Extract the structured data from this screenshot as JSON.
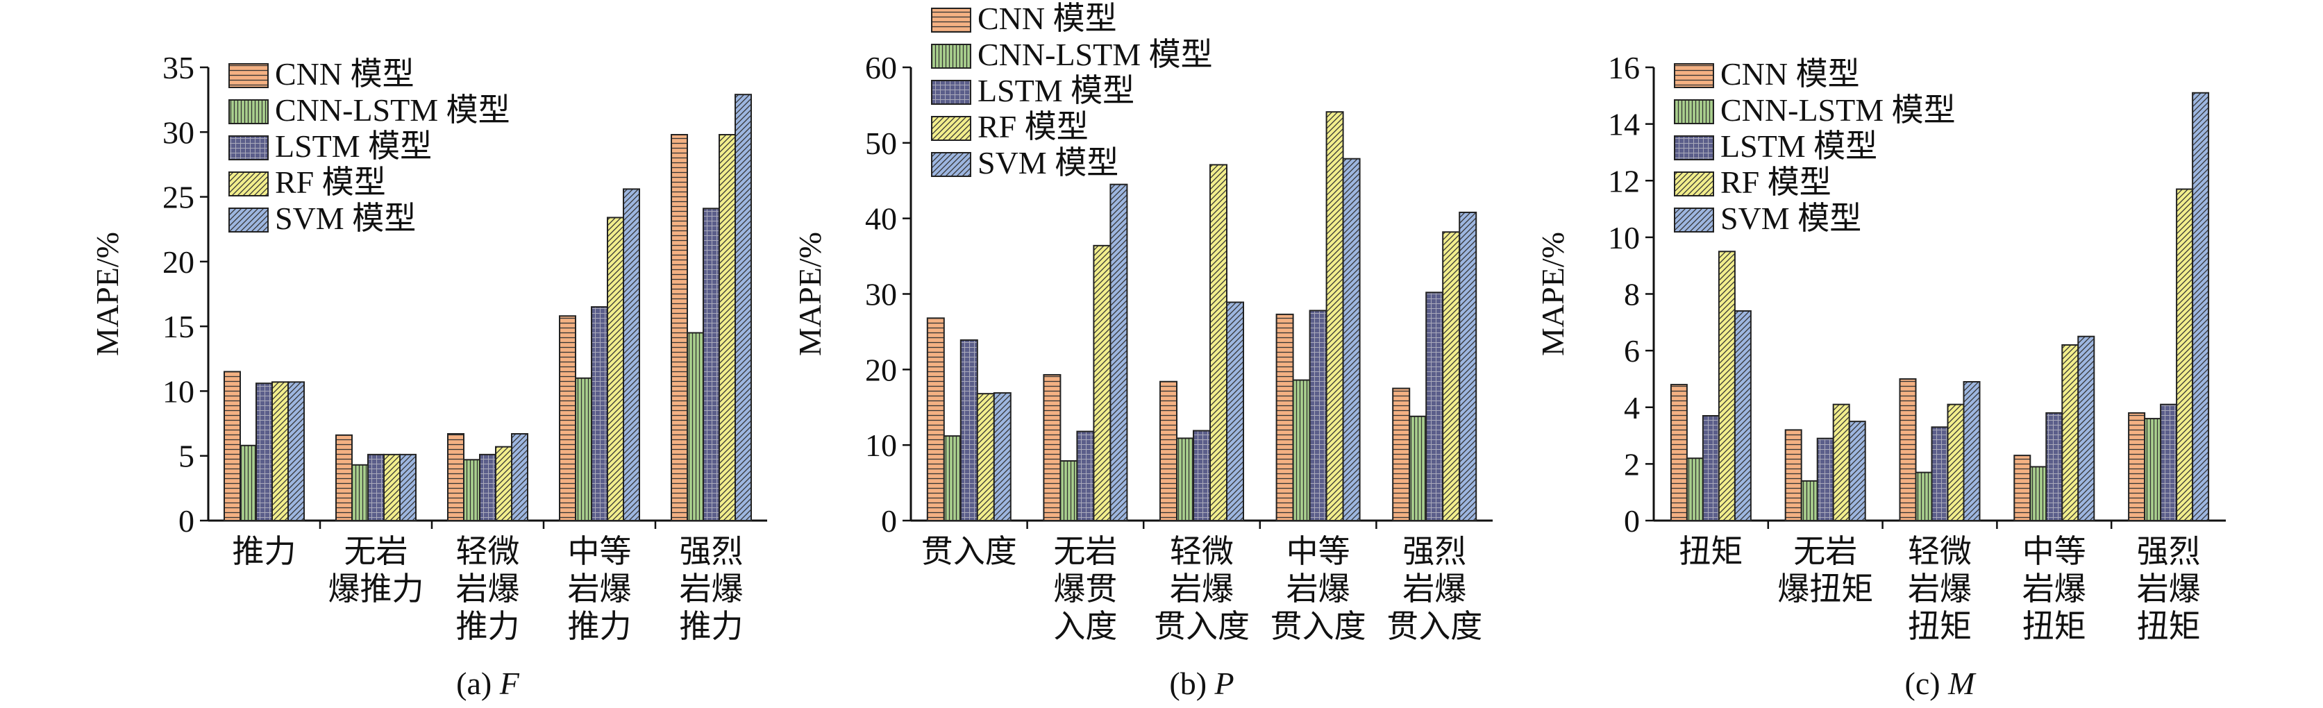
{
  "legend_entries": [
    "CNN 模型",
    "CNN-LSTM 模型",
    "LSTM 模型",
    "RF 模型",
    "SVM 模型"
  ],
  "series_colors": [
    "#f4b183",
    "#a9d08e",
    "#5b5e8a",
    "#f2ee8c",
    "#9db6e0"
  ],
  "series_patterns": [
    "horizontal-lines",
    "vertical-lines",
    "grid",
    "diagonal-lines",
    "diagonal-lines"
  ],
  "chart_data": [
    {
      "type": "bar",
      "caption_prefix": "(a) ",
      "caption_var": "F",
      "ylabel": "MAPE/%",
      "ylim": [
        0,
        35
      ],
      "yticks": [
        "0",
        "5",
        "10",
        "15",
        "20",
        "25",
        "30",
        "35"
      ],
      "legend_placement": "top-left",
      "categories": [
        [
          "推力"
        ],
        [
          "无岩",
          "爆推力"
        ],
        [
          "轻微",
          "岩爆",
          "推力"
        ],
        [
          "中等",
          "岩爆",
          "推力"
        ],
        [
          "强烈",
          "岩爆",
          "推力"
        ]
      ],
      "series": [
        {
          "name": "CNN 模型",
          "values": [
            11.5,
            6.6,
            6.7,
            15.8,
            29.8
          ]
        },
        {
          "name": "CNN-LSTM 模型",
          "values": [
            5.8,
            4.3,
            4.7,
            11.0,
            14.5
          ]
        },
        {
          "name": "LSTM 模型",
          "values": [
            10.6,
            5.1,
            5.1,
            16.5,
            24.1
          ]
        },
        {
          "name": "RF 模型",
          "values": [
            10.7,
            5.1,
            5.7,
            23.4,
            29.8
          ]
        },
        {
          "name": "SVM 模型",
          "values": [
            10.7,
            5.1,
            6.7,
            25.6,
            32.9
          ]
        }
      ]
    },
    {
      "type": "bar",
      "caption_prefix": "(b) ",
      "caption_var": "P",
      "ylabel": "MAPE/%",
      "ylim": [
        0,
        60
      ],
      "yticks": [
        "0",
        "10",
        "20",
        "30",
        "40",
        "50",
        "60"
      ],
      "legend_placement": "top-left",
      "categories": [
        [
          "贯入度"
        ],
        [
          "无岩",
          "爆贯",
          "入度"
        ],
        [
          "轻微",
          "岩爆",
          "贯入度"
        ],
        [
          "中等",
          "岩爆",
          "贯入度"
        ],
        [
          "强烈",
          "岩爆",
          "贯入度"
        ]
      ],
      "series": [
        {
          "name": "CNN 模型",
          "values": [
            26.8,
            19.3,
            18.4,
            27.3,
            17.5
          ]
        },
        {
          "name": "CNN-LSTM 模型",
          "values": [
            11.2,
            7.9,
            10.9,
            18.6,
            13.8
          ]
        },
        {
          "name": "LSTM 模型",
          "values": [
            23.9,
            11.8,
            11.9,
            27.8,
            30.2
          ]
        },
        {
          "name": "RF 模型",
          "values": [
            16.8,
            36.4,
            47.1,
            54.1,
            38.2
          ]
        },
        {
          "name": "SVM 模型",
          "values": [
            16.9,
            44.5,
            28.9,
            47.9,
            40.8
          ]
        }
      ]
    },
    {
      "type": "bar",
      "caption_prefix": "(c) ",
      "caption_var": "M",
      "ylabel": "MAPE/%",
      "ylim": [
        0,
        16
      ],
      "yticks": [
        "0",
        "2",
        "4",
        "6",
        "8",
        "10",
        "12",
        "14",
        "16"
      ],
      "legend_placement": "top-left",
      "categories": [
        [
          "扭矩"
        ],
        [
          "无岩",
          "爆扭矩"
        ],
        [
          "轻微",
          "岩爆",
          "扭矩"
        ],
        [
          "中等",
          "岩爆",
          "扭矩"
        ],
        [
          "强烈",
          "岩爆",
          "扭矩"
        ]
      ],
      "series": [
        {
          "name": "CNN 模型",
          "values": [
            4.8,
            3.2,
            5.0,
            2.3,
            3.8
          ]
        },
        {
          "name": "CNN-LSTM 模型",
          "values": [
            2.2,
            1.4,
            1.7,
            1.9,
            3.6
          ]
        },
        {
          "name": "LSTM 模型",
          "values": [
            3.7,
            2.9,
            3.3,
            3.8,
            4.1
          ]
        },
        {
          "name": "RF 模型",
          "values": [
            9.5,
            4.1,
            4.1,
            6.2,
            11.7
          ]
        },
        {
          "name": "SVM 模型",
          "values": [
            7.4,
            3.5,
            4.9,
            6.5,
            15.1
          ]
        }
      ]
    }
  ]
}
